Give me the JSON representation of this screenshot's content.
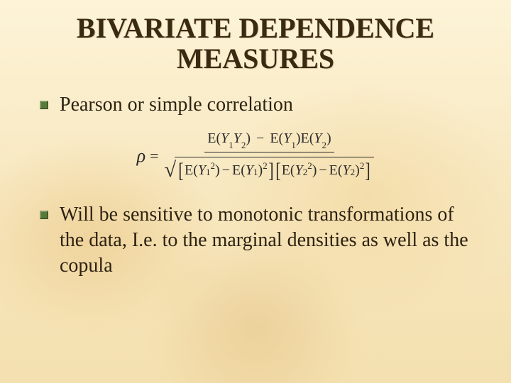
{
  "title": {
    "line1": "BIVARIATE DEPENDENCE",
    "line2": "MEASURES",
    "fontsize": 40,
    "color": "#3b2a12"
  },
  "bullets": {
    "fontsize": 28,
    "marker_color": "#5a7a3a",
    "items": [
      {
        "text": "Pearson or simple correlation"
      },
      {
        "text": "Will be sensitive to monotonic transformations of the data,  I.e. to the marginal densities as well as the copula"
      }
    ]
  },
  "formula": {
    "base_fontsize": 20,
    "lhs": "ρ",
    "numerator": {
      "t1": "E",
      "a1": "Y",
      "s1": "1",
      "a2": "Y",
      "s2": "2",
      "t2": "E",
      "a3": "Y",
      "s3": "1",
      "t3": "E",
      "a4": "Y",
      "s4": "2"
    },
    "denominator": {
      "g1": {
        "t1": "E",
        "a1": "Y",
        "s1": "1",
        "p1": "2",
        "t2": "E",
        "a2": "Y",
        "s2": "1",
        "p2": "2"
      },
      "g2": {
        "t1": "E",
        "a1": "Y",
        "s1": "2",
        "p1": "2",
        "t2": "E",
        "a2": "Y",
        "s2": "2",
        "p2": "2"
      }
    }
  },
  "background": {
    "base_gradient_top": "#fdf3d7",
    "base_gradient_mid": "#f8e9c2",
    "base_gradient_bottom": "#f4e0af",
    "leaf_tint": "#e9c482"
  }
}
